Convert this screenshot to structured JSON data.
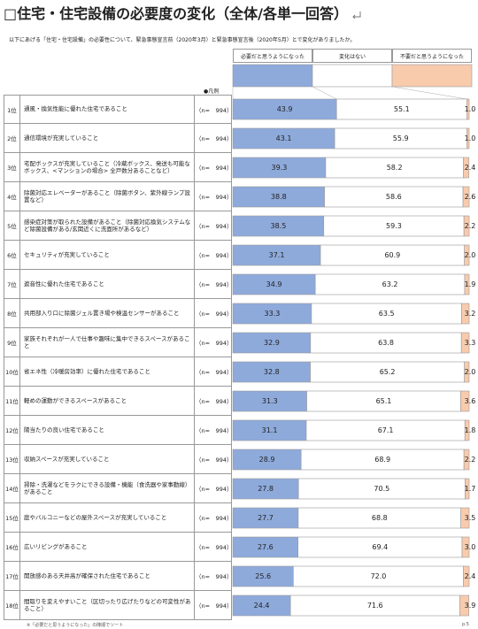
{
  "chart_data": {
    "type": "stacked_barh",
    "title": "□住宅・住宅設備の必要度の変化（全体/各単一回答）",
    "subtitle": "以下にあげる「住宅・住宅設備」の必要性について、緊急事態宣言前（2020年3月）と緊急事態宣言後（2020年5月）とで変化がありましたか。",
    "legend_caption": "●凡例",
    "note": "※「必要だと思うようになった」の降順でソート",
    "page": "p.5",
    "xlim": [
      0,
      100
    ],
    "ranks": [
      "1位",
      "2位",
      "3位",
      "4位",
      "5位",
      "6位",
      "7位",
      "8位",
      "9位",
      "10位",
      "11位",
      "12位",
      "13位",
      "14位",
      "15位",
      "16位",
      "17位",
      "18位"
    ],
    "categories": [
      "通風・換気性能に優れた住宅であること",
      "通信環境が充実していること",
      "宅配ボックスが充実していること（冷蔵ボックス、発送も可能なボックス、<マンションの場合> 全戸数分あることなど）",
      "除菌対応エレベーターがあること（除菌ボタン、紫外線ランプ設置など）",
      "感染症対策が取られた設備があること（除菌対応換気システムなど除菌設備がある/玄関近くに洗面所があるなど）",
      "セキュリティが充実していること",
      "遮音性に優れた住宅であること",
      "共用部入り口に除菌ジェル置き場や検温センサーがあること",
      "家族それぞれが一人で仕事や趣味に集中できるスペースがあること",
      "省エネ性（冷暖房効率）に優れた住宅であること",
      "軽めの運動ができるスペースがあること",
      "陽当たりの良い住宅であること",
      "収納スペースが充実していること",
      "掃除・洗濯などをラクにできる設備・機能（食洗器や家事動線）があること",
      "庭やバルコニーなどの屋外スペースが充実していること",
      "広いリビングがあること",
      "開放感のある天井高が確保された住宅であること",
      "間取りを変えやすいこと（区切ったり広げたりなどの可変性があること）"
    ],
    "n": [
      "（n=　994）",
      "（n=　994）",
      "（n=　994）",
      "（n=　994）",
      "（n=　994）",
      "（n=　994）",
      "（n=　994）",
      "（n=　994）",
      "（n=　994）",
      "（n=　994）",
      "（n=　994）",
      "（n=　994）",
      "（n=　994）",
      "（n=　994）",
      "（n=　994）",
      "（n=　994）",
      "（n=　994）",
      "（n=　994）"
    ],
    "series": [
      {
        "name": "必要だと思うようになった",
        "color": "#8eaadb",
        "values": [
          43.9,
          43.1,
          39.3,
          38.8,
          38.5,
          37.1,
          34.9,
          33.3,
          32.9,
          32.8,
          31.3,
          31.1,
          28.9,
          27.8,
          27.7,
          27.6,
          25.6,
          24.4
        ],
        "value_labels": [
          "43.9",
          "43.1",
          "39.3",
          "38.8",
          "38.5",
          "37.1",
          "34.9",
          "33.3",
          "32.9",
          "32.8",
          "31.3",
          "31.1",
          "28.9",
          "27.8",
          "27.7",
          "27.6",
          "25.6",
          "24.4"
        ]
      },
      {
        "name": "変化はない",
        "color": "#ffffff",
        "values": [
          55.1,
          55.9,
          58.2,
          58.6,
          59.3,
          60.9,
          63.2,
          63.5,
          63.8,
          65.2,
          65.1,
          67.1,
          68.9,
          70.5,
          68.8,
          69.4,
          72.0,
          71.6
        ],
        "value_labels": [
          "55.1",
          "55.9",
          "58.2",
          "58.6",
          "59.3",
          "60.9",
          "63.2",
          "63.5",
          "63.8",
          "65.2",
          "65.1",
          "67.1",
          "68.9",
          "70.5",
          "68.8",
          "69.4",
          "72.0",
          "71.6"
        ]
      },
      {
        "name": "不要だと思うようになった",
        "color": "#f8cbad",
        "values": [
          1.0,
          1.0,
          2.4,
          2.6,
          2.2,
          2.0,
          1.9,
          3.2,
          3.3,
          2.0,
          3.6,
          1.8,
          2.2,
          1.7,
          3.5,
          3.0,
          2.4,
          3.9
        ],
        "value_labels": [
          "1.0",
          "1.0",
          "2.4",
          "2.6",
          "2.2",
          "2.0",
          "1.9",
          "3.2",
          "3.3",
          "2.0",
          "3.6",
          "1.8",
          "2.2",
          "1.7",
          "3.5",
          "3.0",
          "2.4",
          "3.9"
        ]
      }
    ]
  }
}
